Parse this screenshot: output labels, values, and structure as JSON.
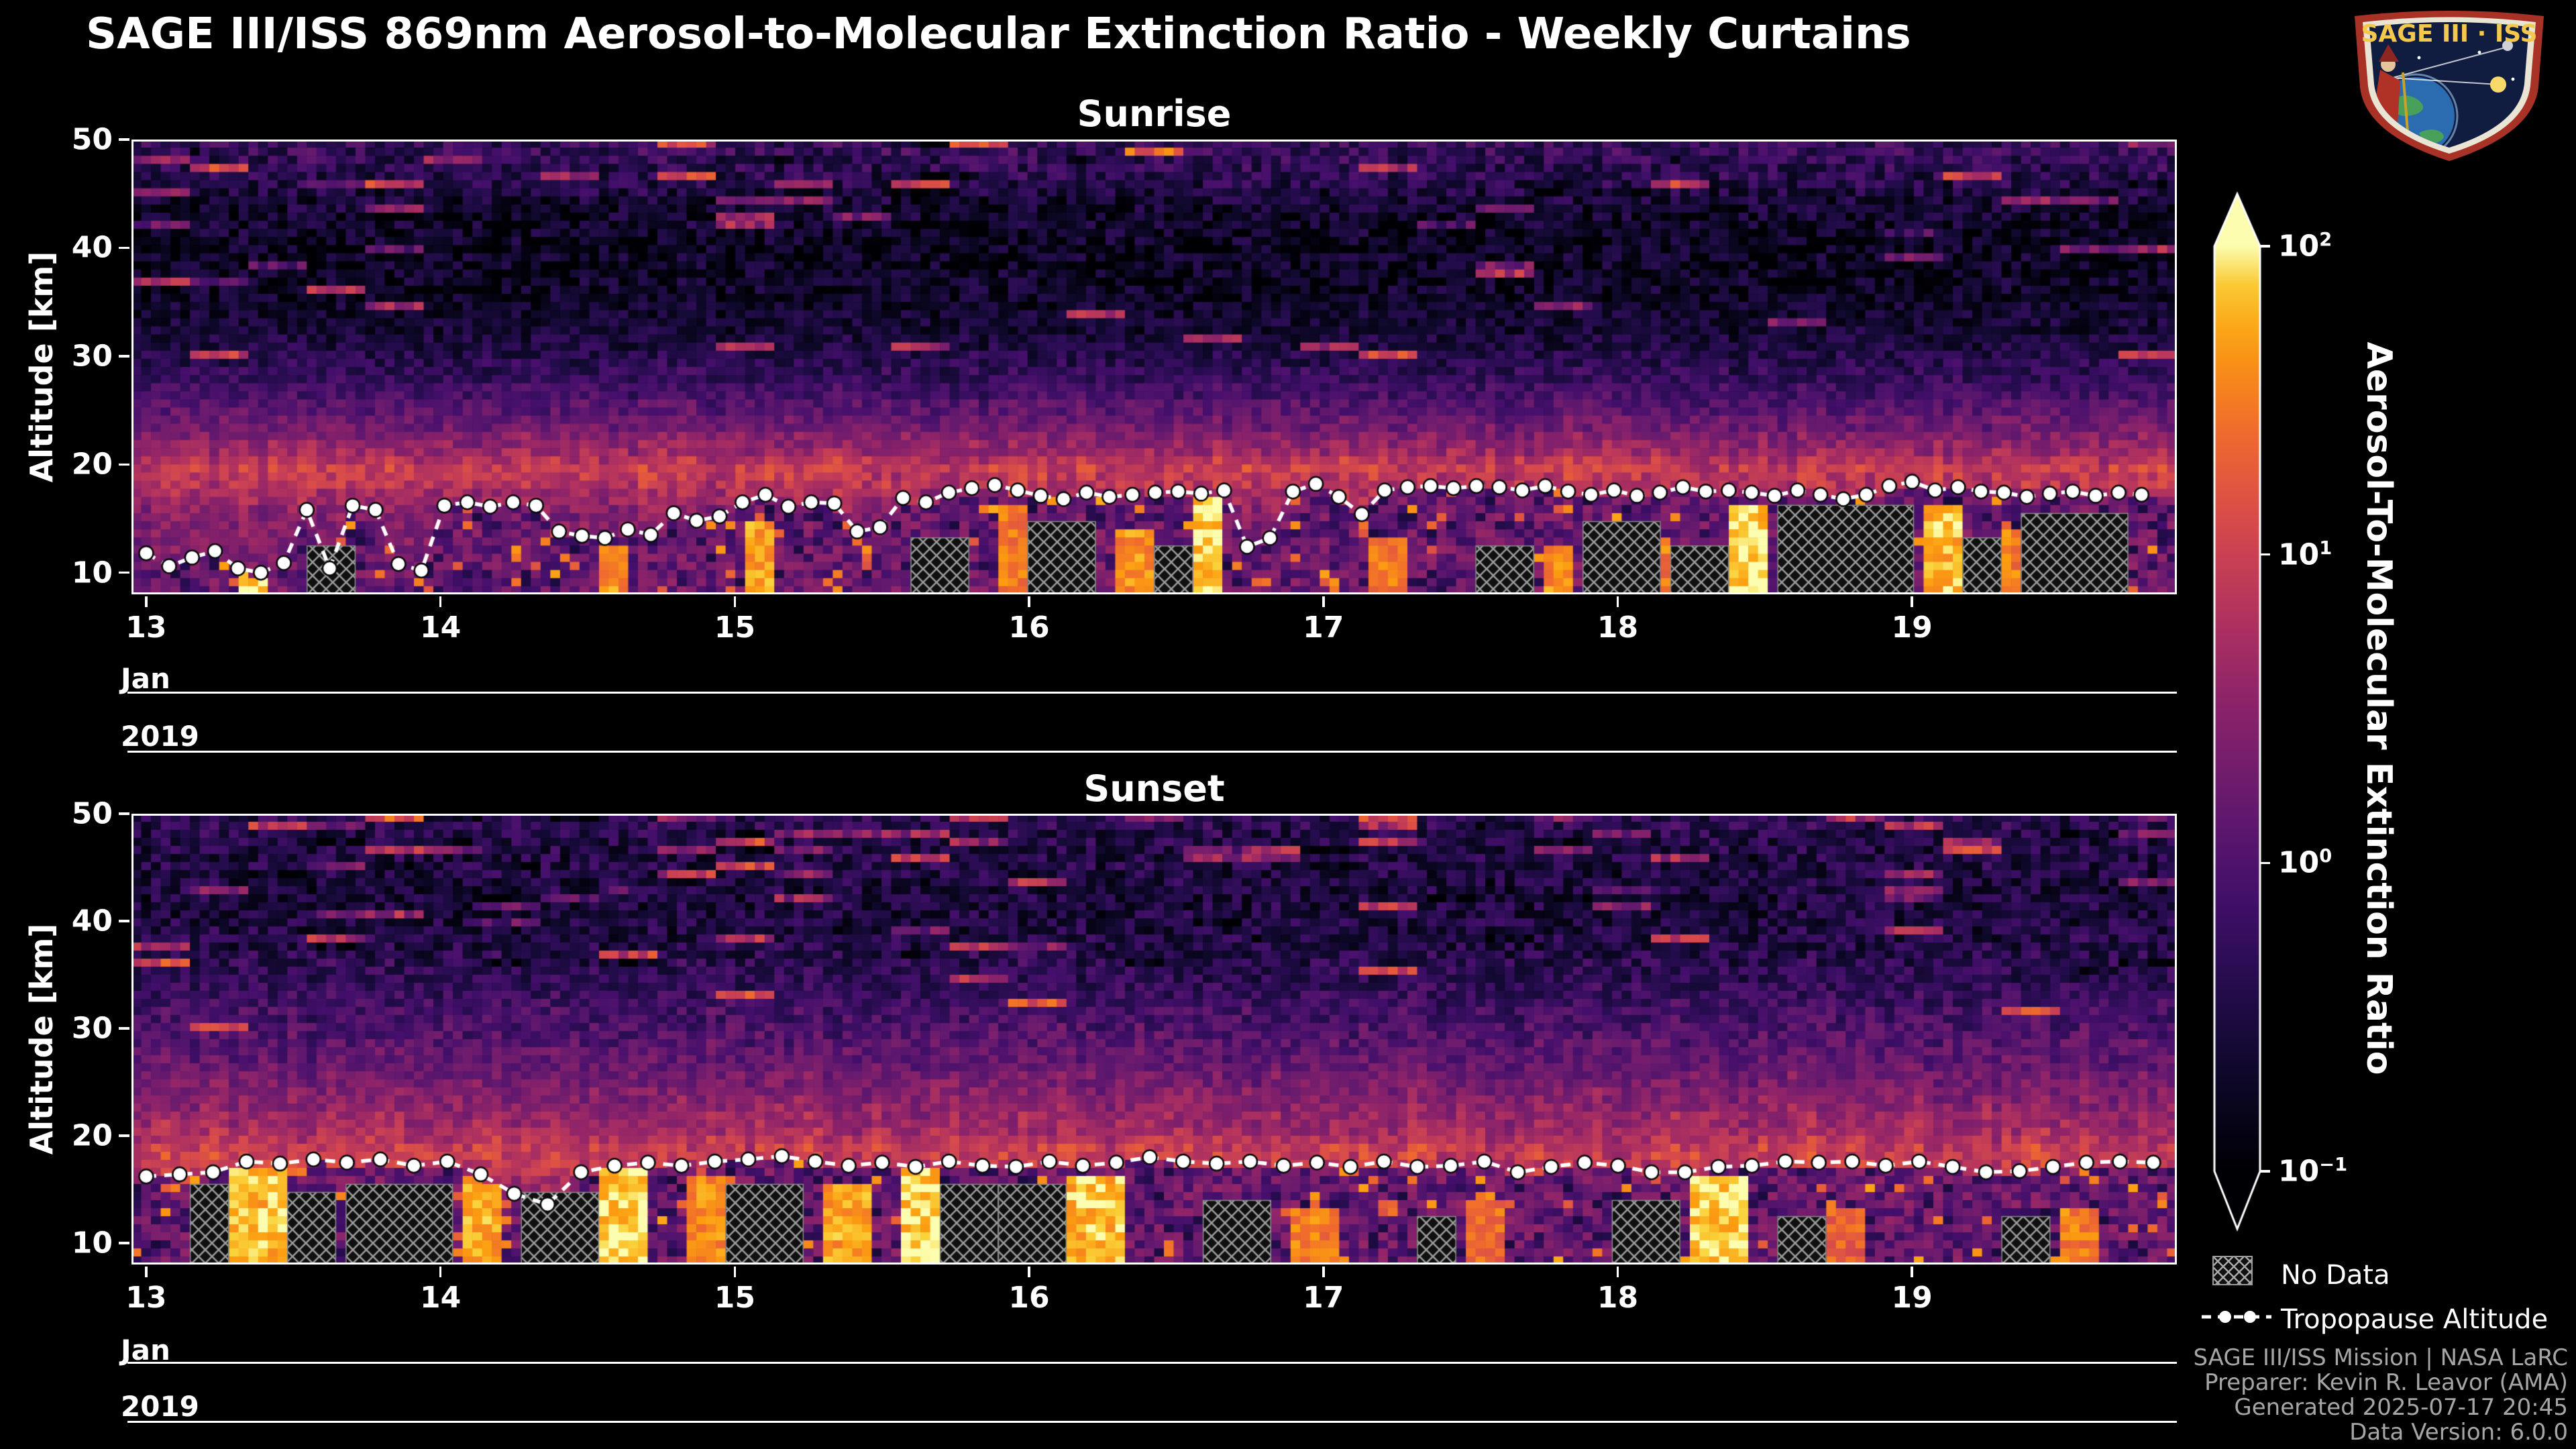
{
  "title": "SAGE III/ISS 869nm Aerosol-to-Molecular Extinction Ratio - Weekly Curtains",
  "logo": {
    "text": "SAGE III · ISS"
  },
  "colorbar": {
    "label": "Aerosol-To-Molecular Extinction Ratio",
    "scale": "log",
    "ticks": [
      {
        "base": "10",
        "exp": "2",
        "value": 100
      },
      {
        "base": "10",
        "exp": "1",
        "value": 10
      },
      {
        "base": "10",
        "exp": "0",
        "value": 1
      },
      {
        "base": "10",
        "exp": "−1",
        "value": 0.1
      }
    ]
  },
  "legend": {
    "no_data_label": "No Data",
    "tropopause_label": "Tropopause Altitude"
  },
  "credits": {
    "lines": [
      "SAGE III/ISS Mission | NASA LaRC",
      "Preparer: Kevin R. Leavor (AMA)",
      "Generated 2025-07-17 20:45",
      "Data Version: 6.0.0"
    ]
  },
  "chart_data": [
    {
      "type": "heatmap",
      "title": "Sunrise",
      "ylabel": "Altitude [km]",
      "xlabel_month": "Jan",
      "xlabel_year": "2019",
      "xlim": [
        12.95,
        19.9
      ],
      "ylim": [
        8,
        50
      ],
      "xticks": [
        13,
        14,
        15,
        16,
        17,
        18,
        19
      ],
      "yticks": [
        10,
        20,
        30,
        40,
        50
      ],
      "zscale": "log",
      "zlim": [
        0.1,
        100
      ],
      "colormap": "inferno",
      "n_time_columns": 210,
      "alt_step_km": 0.75,
      "seed": 11,
      "background_profile": {
        "alt_km": [
          50,
          47,
          44,
          40,
          36,
          32,
          28,
          24,
          21,
          19.5,
          18,
          16,
          12,
          8
        ],
        "mean_log10_ratio": [
          -0.22,
          -0.34,
          -0.64,
          -0.76,
          -0.73,
          -0.58,
          -0.28,
          0.2,
          0.68,
          0.98,
          0.8,
          0.5,
          0.35,
          0.26
        ]
      },
      "tropopause": {
        "x_start": 13.0,
        "x_end": 19.78,
        "alt_km": [
          11.8,
          10.6,
          11.4,
          12.0,
          10.4,
          10.0,
          10.9,
          15.8,
          10.4,
          16.2,
          15.8,
          10.8,
          10.2,
          16.2,
          16.5,
          16.1,
          16.5,
          16.2,
          13.8,
          13.4,
          13.2,
          14.0,
          13.5,
          15.5,
          14.8,
          15.2,
          16.5,
          17.2,
          16.1,
          16.5,
          16.4,
          13.8,
          14.2,
          16.9,
          16.5,
          17.4,
          17.8,
          18.1,
          17.6,
          17.1,
          16.8,
          17.4,
          17.0,
          17.2,
          17.4,
          17.5,
          17.3,
          17.6,
          12.4,
          13.2,
          17.5,
          18.2,
          17.0,
          15.4,
          17.6,
          17.9,
          18.0,
          17.8,
          18.0,
          17.9,
          17.6,
          18.0,
          17.5,
          17.2,
          17.6,
          17.1,
          17.4,
          17.9,
          17.5,
          17.6,
          17.4,
          17.1,
          17.6,
          17.2,
          16.8,
          17.2,
          18.0,
          18.4,
          17.6,
          17.9,
          17.5,
          17.4,
          17.0,
          17.3,
          17.5,
          17.1,
          17.4,
          17.2
        ]
      },
      "no_data_regions": [
        [
          13.55,
          13.7,
          12.5
        ],
        [
          15.62,
          15.78,
          13.0
        ],
        [
          16.0,
          16.2,
          14.5
        ],
        [
          16.44,
          16.54,
          12.0
        ],
        [
          17.55,
          17.7,
          12.5
        ],
        [
          17.9,
          18.12,
          14.0
        ],
        [
          18.2,
          18.35,
          12.0
        ],
        [
          18.56,
          19.0,
          16.0
        ],
        [
          19.18,
          19.3,
          13.0
        ],
        [
          19.4,
          19.72,
          15.5
        ]
      ],
      "plumes": [
        [
          13.33,
          13.4,
          12,
          1.8
        ],
        [
          14.53,
          14.65,
          12.5,
          1.6
        ],
        [
          15.03,
          15.15,
          15,
          1.7
        ],
        [
          15.9,
          15.99,
          16,
          1.5
        ],
        [
          16.28,
          16.42,
          14,
          1.6
        ],
        [
          16.56,
          16.67,
          17,
          1.9
        ],
        [
          17.14,
          17.3,
          13,
          1.5
        ],
        [
          17.74,
          17.86,
          12.5,
          1.6
        ],
        [
          18.13,
          18.19,
          13,
          1.5
        ],
        [
          18.38,
          18.52,
          16.5,
          1.9
        ],
        [
          19.04,
          19.16,
          16,
          1.8
        ],
        [
          19.32,
          19.38,
          14,
          1.5
        ]
      ]
    },
    {
      "type": "heatmap",
      "title": "Sunset",
      "ylabel": "Altitude [km]",
      "xlabel_month": "Jan",
      "xlabel_year": "2019",
      "xlim": [
        12.95,
        19.9
      ],
      "ylim": [
        8,
        50
      ],
      "xticks": [
        13,
        14,
        15,
        16,
        17,
        18,
        19
      ],
      "yticks": [
        10,
        20,
        30,
        40,
        50
      ],
      "zscale": "log",
      "zlim": [
        0.1,
        100
      ],
      "colormap": "inferno",
      "n_time_columns": 210,
      "alt_step_km": 0.75,
      "seed": 23,
      "background_profile": {
        "alt_km": [
          50,
          46,
          42,
          38,
          34,
          30,
          26,
          22,
          19.5,
          17.5,
          15,
          11,
          8
        ],
        "mean_log10_ratio": [
          -0.34,
          -0.46,
          -0.55,
          -0.46,
          -0.28,
          -0.01,
          0.26,
          0.56,
          0.86,
          0.98,
          0.56,
          0.35,
          0.26
        ]
      },
      "tropopause": {
        "x_start": 13.0,
        "x_end": 19.82,
        "alt_km": [
          16.2,
          16.4,
          16.6,
          17.6,
          17.4,
          17.8,
          17.5,
          17.8,
          17.2,
          17.6,
          16.4,
          14.6,
          13.6,
          16.6,
          17.2,
          17.5,
          17.2,
          17.6,
          17.8,
          18.1,
          17.6,
          17.2,
          17.5,
          17.1,
          17.6,
          17.2,
          17.1,
          17.6,
          17.2,
          17.5,
          18.0,
          17.6,
          17.4,
          17.6,
          17.2,
          17.5,
          17.1,
          17.6,
          17.1,
          17.2,
          17.6,
          16.6,
          17.1,
          17.5,
          17.2,
          16.6,
          16.6,
          17.1,
          17.2,
          17.6,
          17.5,
          17.6,
          17.2,
          17.6,
          17.1,
          16.6,
          16.7,
          17.1,
          17.5,
          17.6,
          17.5
        ]
      },
      "no_data_regions": [
        [
          13.15,
          13.28,
          15.5
        ],
        [
          13.5,
          13.64,
          14.5
        ],
        [
          13.68,
          14.04,
          15.0
        ],
        [
          14.3,
          14.52,
          14.5
        ],
        [
          15.0,
          15.22,
          14.8
        ],
        [
          15.72,
          15.88,
          15.2
        ],
        [
          15.92,
          16.1,
          14.8
        ],
        [
          16.62,
          16.82,
          13.5
        ],
        [
          17.32,
          17.44,
          12.0
        ],
        [
          18.0,
          18.2,
          14.0
        ],
        [
          18.56,
          18.7,
          12.0
        ],
        [
          19.32,
          19.46,
          12.5
        ]
      ],
      "plumes": [
        [
          13.28,
          13.47,
          17.5,
          1.8
        ],
        [
          14.06,
          14.2,
          16,
          1.7
        ],
        [
          14.54,
          14.7,
          17.5,
          1.9
        ],
        [
          14.85,
          15.0,
          16,
          1.6
        ],
        [
          15.3,
          15.45,
          15.5,
          1.7
        ],
        [
          15.55,
          15.7,
          17.8,
          1.9
        ],
        [
          16.14,
          16.32,
          16,
          1.8
        ],
        [
          16.9,
          17.05,
          13.5,
          1.5
        ],
        [
          17.5,
          17.62,
          14,
          1.4
        ],
        [
          18.25,
          18.45,
          16.5,
          1.9
        ],
        [
          18.72,
          18.84,
          13,
          1.3
        ],
        [
          19.5,
          19.65,
          13.5,
          1.5
        ]
      ]
    }
  ]
}
